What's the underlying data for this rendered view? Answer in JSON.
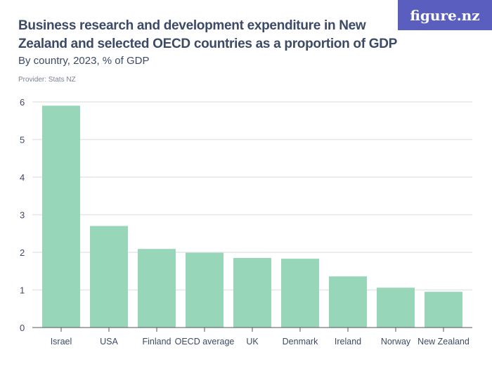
{
  "title": "Business research and development expenditure in New Zealand and selected OECD countries as a proportion of GDP",
  "subtitle": "By country, 2023, % of GDP",
  "provider": "Provider: Stats NZ",
  "logo": "figure.nz",
  "colors": {
    "bar": "#98d6ba",
    "text": "#3d4a66",
    "logo_bg": "#5a5fbf",
    "grid": "#e6e6e6"
  },
  "chart_data": {
    "type": "bar",
    "categories": [
      "Israel",
      "USA",
      "Finland",
      "OECD average",
      "UK",
      "Denmark",
      "Ireland",
      "Norway",
      "New Zealand"
    ],
    "values": [
      5.9,
      2.7,
      2.09,
      1.99,
      1.85,
      1.83,
      1.36,
      1.06,
      0.95
    ],
    "ylim": [
      0,
      6
    ],
    "yticks": [
      0,
      1,
      2,
      3,
      4,
      5,
      6
    ],
    "grid": true,
    "xlabel": "",
    "ylabel": ""
  }
}
